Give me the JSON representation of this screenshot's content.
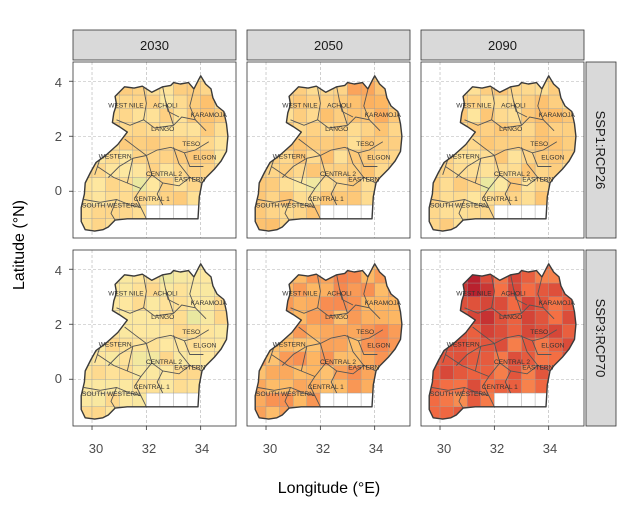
{
  "figure": {
    "xlabel": "Longitude (°E)",
    "ylabel": "Latitude (°N)",
    "x_ticks": [
      "30",
      "32",
      "34"
    ],
    "y_ticks": [
      "4",
      "2",
      "0"
    ],
    "column_labels": [
      "2030",
      "2050",
      "2090"
    ],
    "row_labels": [
      "SSP1:RCP26",
      "SSP3:RCP70"
    ],
    "region_labels": [
      "WEST NILE",
      "ACHOLI",
      "KARAMOJA",
      "LANGO",
      "TESO",
      "ELGON",
      "WESTERN",
      "CENTRAL 2",
      "EASTERN",
      "CENTRAL 1",
      "SOUTH WESTERN"
    ]
  },
  "chart_data": {
    "type": "heatmap",
    "title": "",
    "xlabel": "Longitude (°E)",
    "ylabel": "Latitude (°N)",
    "xlim": [
      29.3,
      35.3
    ],
    "ylim": [
      -1.7,
      4.7
    ],
    "x_ticks": [
      30,
      32,
      34
    ],
    "y_ticks": [
      0,
      2,
      4
    ],
    "grid": true,
    "facet_columns": [
      "2030",
      "2050",
      "2090"
    ],
    "facet_rows": [
      "SSP1:RCP26",
      "SSP3:RCP70"
    ],
    "cell_size_deg": 0.5,
    "colors": {
      "low": "#c9e8a0",
      "mid": "#fee8a0",
      "high": "#b2182b",
      "missing": "#ffffff",
      "outline": "#3a3a3a",
      "strip_fill": "#d9d9d9",
      "gridline": "#b0b0b0"
    },
    "note_levels": "relative level 0 = light green, 0.5 = pale yellow, 1 = dark red",
    "panels": [
      {
        "row": "SSP1:RCP26",
        "column": "2030",
        "mean_level": 0.55,
        "hotspots": [
          {
            "lon": 34.2,
            "lat": 3.0,
            "level": 0.66
          },
          {
            "lon": 33.6,
            "lat": 1.2,
            "level": 0.62
          }
        ],
        "cool_spots": [
          {
            "lon": 31.7,
            "lat": 0.3,
            "level": 0.3
          }
        ]
      },
      {
        "row": "SSP1:RCP26",
        "column": "2050",
        "mean_level": 0.59,
        "hotspots": [
          {
            "lon": 33.5,
            "lat": 3.7,
            "level": 0.75
          },
          {
            "lon": 34.2,
            "lat": 2.8,
            "level": 0.7
          }
        ],
        "cool_spots": [
          {
            "lon": 31.6,
            "lat": 0.2,
            "level": 0.32
          }
        ]
      },
      {
        "row": "SSP1:RCP26",
        "column": "2090",
        "mean_level": 0.57,
        "hotspots": [
          {
            "lon": 34.0,
            "lat": 2.8,
            "level": 0.68
          },
          {
            "lon": 33.8,
            "lat": 1.6,
            "level": 0.64
          }
        ],
        "cool_spots": [
          {
            "lon": 31.8,
            "lat": 0.3,
            "level": 0.3
          }
        ]
      },
      {
        "row": "SSP3:RCP70",
        "column": "2030",
        "mean_level": 0.51,
        "hotspots": [
          {
            "lon": 33.5,
            "lat": 1.8,
            "level": 0.58
          }
        ],
        "cool_spots": [
          {
            "lon": 33.9,
            "lat": 2.3,
            "level": 0.25
          },
          {
            "lon": 32.9,
            "lat": 3.6,
            "level": 0.28
          },
          {
            "lon": 32.0,
            "lat": 0.8,
            "level": 0.3
          }
        ]
      },
      {
        "row": "SSP3:RCP70",
        "column": "2050",
        "mean_level": 0.7,
        "hotspots": [
          {
            "lon": 32.9,
            "lat": 3.6,
            "level": 0.8
          },
          {
            "lon": 34.3,
            "lat": 1.5,
            "level": 0.78
          }
        ],
        "cool_spots": []
      },
      {
        "row": "SSP3:RCP70",
        "column": "2090",
        "mean_level": 0.84,
        "hotspots": [
          {
            "lon": 31.3,
            "lat": 3.5,
            "level": 1.0
          },
          {
            "lon": 31.6,
            "lat": 2.2,
            "level": 0.95
          },
          {
            "lon": 33.4,
            "lat": 2.1,
            "level": 0.92
          }
        ],
        "cool_spots": [
          {
            "lon": 30.5,
            "lat": -0.6,
            "level": 0.72
          }
        ]
      }
    ],
    "no_data_cells": [
      {
        "lon": 32.75,
        "lat": -0.75
      },
      {
        "lon": 33.25,
        "lat": -0.75
      },
      {
        "lon": 33.75,
        "lat": -0.75
      },
      {
        "lon": 32.25,
        "lat": -0.75
      }
    ]
  }
}
